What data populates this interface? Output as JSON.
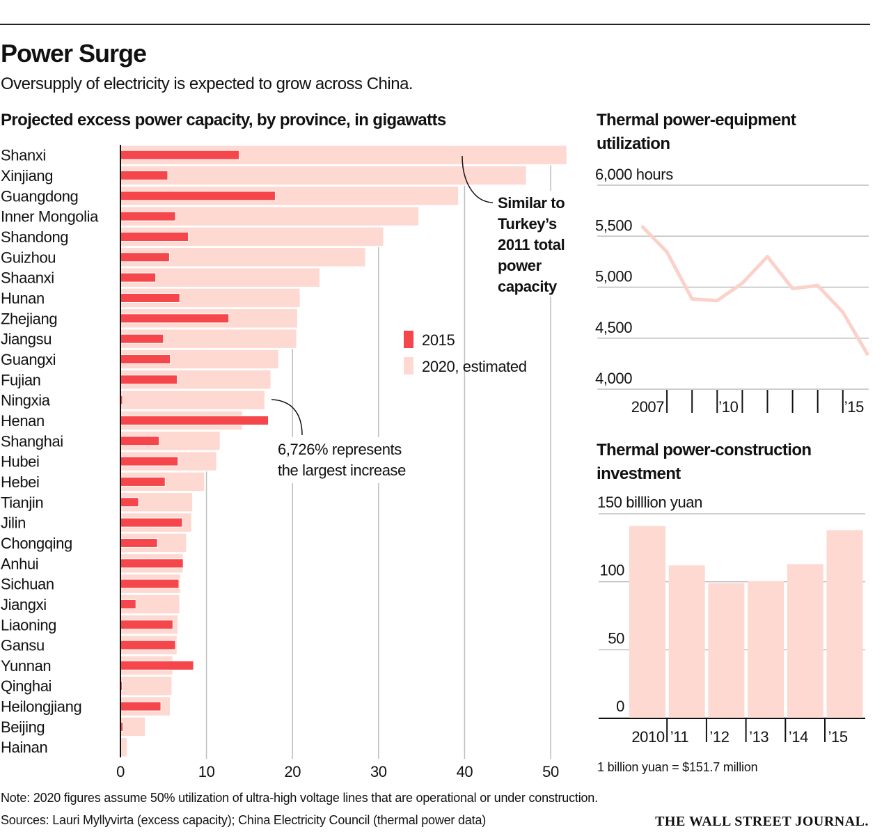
{
  "header": {
    "title": "Power Surge",
    "subtitle": "Oversupply of electricity is expected to grow across China."
  },
  "colors": {
    "s2015": "#f5464b",
    "s2020": "#fdd9d2",
    "line": "#fad2ca",
    "grid": "#bdbdbd"
  },
  "chart_data": [
    {
      "type": "bar",
      "orientation": "horizontal",
      "title": "Projected excess power capacity, by province, in gigawatts",
      "categories": [
        "Shanxi",
        "Xinjiang",
        "Guangdong",
        "Inner Mongolia",
        "Shandong",
        "Guizhou",
        "Shaanxi",
        "Hunan",
        "Zhejiang",
        "Jiangsu",
        "Guangxi",
        "Fujian",
        "Ningxia",
        "Henan",
        "Shanghai",
        "Hubei",
        "Hebei",
        "Tianjin",
        "Jilin",
        "Chongqing",
        "Anhui",
        "Sichuan",
        "Jiangxi",
        "Liaoning",
        "Gansu",
        "Yunnan",
        "Qinghai",
        "Heilongjiang",
        "Beijing",
        "Hainan"
      ],
      "series": [
        {
          "name": "2015",
          "values": [
            13.8,
            5.5,
            18.0,
            6.4,
            7.9,
            5.7,
            4.1,
            6.9,
            12.6,
            5.0,
            5.8,
            6.6,
            0.25,
            17.2,
            4.5,
            6.7,
            5.2,
            2.1,
            7.2,
            4.3,
            7.3,
            6.8,
            1.8,
            6.1,
            6.4,
            8.5,
            0.2,
            4.7,
            0.3,
            0
          ]
        },
        {
          "name": "2020, estimated",
          "values": [
            51.9,
            47.2,
            39.3,
            34.7,
            30.6,
            28.5,
            23.2,
            20.9,
            20.6,
            20.5,
            18.4,
            17.5,
            16.8,
            14.2,
            11.6,
            11.2,
            9.8,
            8.4,
            8.3,
            7.7,
            7.3,
            7.0,
            6.9,
            6.7,
            6.6,
            6.1,
            6.0,
            5.8,
            2.9,
            0.8
          ]
        }
      ],
      "xlim": [
        0,
        52
      ],
      "xticks": [
        "0",
        "10",
        "20",
        "30",
        "40",
        "50"
      ],
      "grid": true,
      "legend": "center-right",
      "annotations": [
        {
          "target": "Shanxi",
          "lines": [
            "Similar to",
            "Turkey’s",
            "2011 total",
            "power",
            "capacity"
          ]
        },
        {
          "target": "Ningxia",
          "lines": [
            "6,726% represents",
            "the largest increase"
          ]
        }
      ]
    },
    {
      "type": "line",
      "title": "Thermal power-equipment utilization",
      "x": [
        2006,
        2007,
        2008,
        2009,
        2010,
        2011,
        2012,
        2013,
        2014,
        2015
      ],
      "values": [
        5600,
        5345,
        4884,
        4868,
        5039,
        5300,
        4986,
        5016,
        4755,
        4334
      ],
      "ylim": [
        4000,
        6000
      ],
      "yticks": [
        "6,000 hours",
        "5,500",
        "5,000",
        "4,500",
        "4,000"
      ],
      "xticklabels": [
        "2007",
        "’10",
        "’15"
      ],
      "grid": true
    },
    {
      "type": "bar",
      "title": "Thermal power-construction investment",
      "categories": [
        "2010",
        "’11",
        "’12",
        "’13",
        "’14",
        "’15"
      ],
      "values": [
        141,
        112,
        99,
        100.5,
        113,
        138
      ],
      "ylim": [
        0,
        150
      ],
      "yticks": [
        "150 billlion yuan",
        "100",
        "50",
        "0"
      ],
      "grid": true,
      "note": "1 billion yuan = $151.7 million"
    }
  ],
  "footer": {
    "note": "Note: 2020 figures assume 50% utilization of ultra-high voltage lines that are operational or under construction.",
    "sources": "Sources: Lauri Myllyvirta (excess capacity); China Electricity Council (thermal power data)",
    "credit": "THE WALL STREET JOURNAL."
  }
}
